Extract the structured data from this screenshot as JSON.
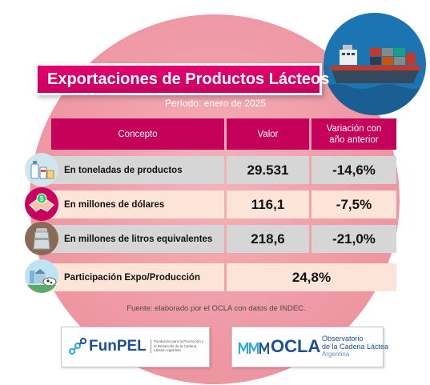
{
  "title": "Exportaciones de Productos Lácteos",
  "period": "Período: enero de 2025",
  "table": {
    "headers": {
      "concept": "Concepto",
      "value": "Valor",
      "variation_line1": "Variación con",
      "variation_line2": "año anterior"
    },
    "rows": [
      {
        "label": "En toneladas de productos",
        "value": "29.531",
        "variation": "-14,6%",
        "icon": "dairy-products-icon"
      },
      {
        "label": "En millones de dólares",
        "value": "116,1",
        "variation": "-7,5%",
        "icon": "money-handshake-icon"
      },
      {
        "label": "En millones de litros equivalentes",
        "value": "218,6",
        "variation": "-21,0%",
        "icon": "milk-can-icon"
      },
      {
        "label": "Participación Expo/Producción",
        "value": "24,8%",
        "icon": "dairy-farm-icon"
      }
    ]
  },
  "source": "Fuente: elaborado por el OCLA con datos de INDEC.",
  "logos": {
    "funpel": {
      "name": "FunPEL",
      "tagline": "Fundación para la Promoción y el Desarrollo de la Cadena Láctea Argentina"
    },
    "ocla": {
      "name": "OCLA",
      "sub1": "Observatorio",
      "sub2": "de la Cadena Láctea",
      "sub3": "Argentina"
    }
  },
  "colors": {
    "accent": "#c4005a",
    "title_bg": "#e4006f",
    "row_gray": "#d6d6d6",
    "row_pink": "#fde4d9",
    "circle_bg": "#ef9aa6",
    "ship_badge": "#1c74b3"
  }
}
